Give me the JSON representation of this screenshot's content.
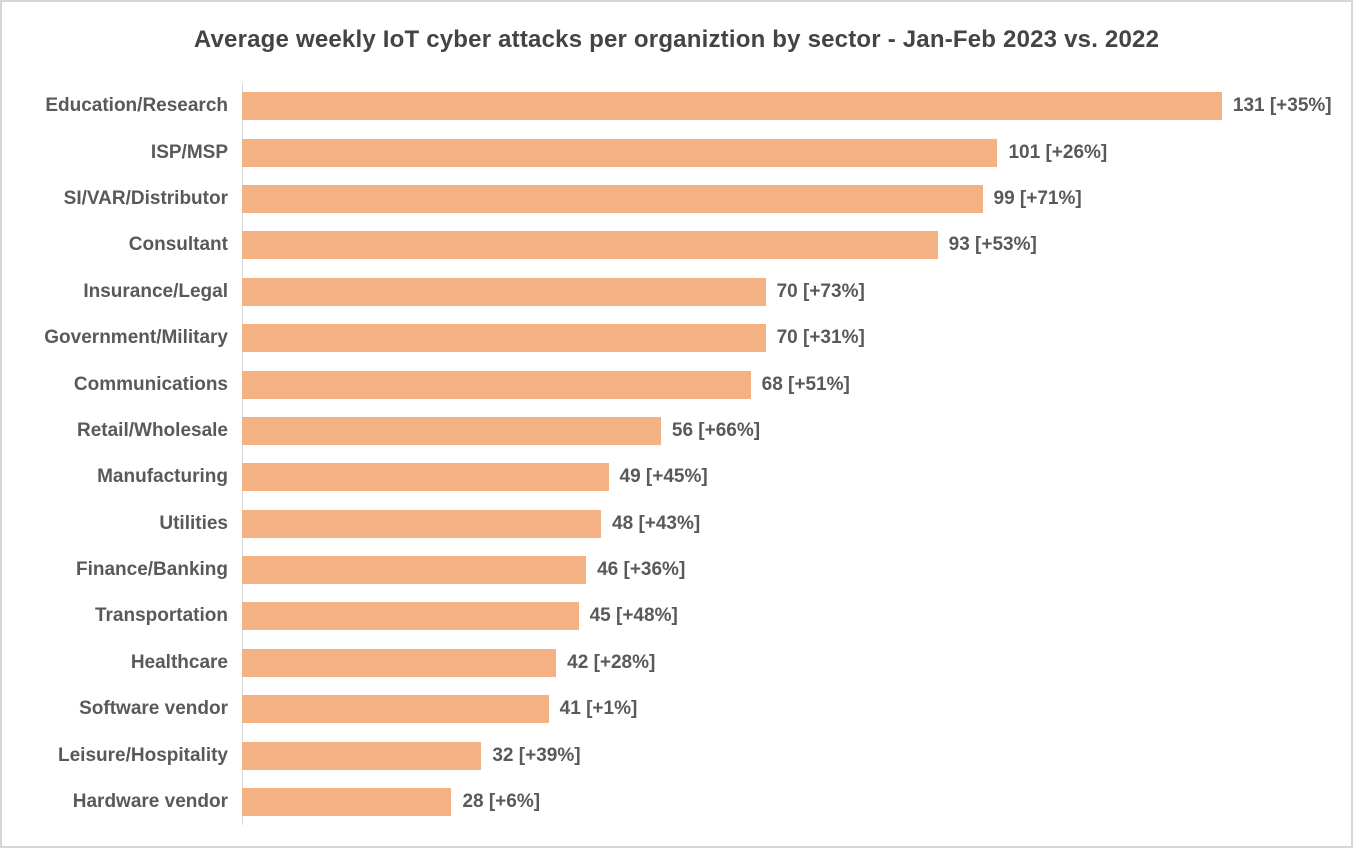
{
  "title": "Average weekly IoT cyber attacks per organiztion by sector - Jan-Feb 2023 vs. 2022",
  "chart_data": {
    "type": "bar",
    "orientation": "horizontal",
    "title": "Average weekly IoT cyber attacks per organiztion by sector - Jan-Feb 2023 vs. 2022",
    "xlabel": "",
    "ylabel": "",
    "xlim": [
      0,
      140
    ],
    "grid": false,
    "legend": "none",
    "bar_color": "#F4B183",
    "text_color": "#595959",
    "axis_line_color": "#D9D9D9",
    "value_label_format": "value [change%]",
    "categories": [
      "Education/Research",
      "ISP/MSP",
      "SI/VAR/Distributor",
      "Consultant",
      "Insurance/Legal",
      "Government/Military",
      "Communications",
      "Retail/Wholesale",
      "Manufacturing",
      "Utilities",
      "Finance/Banking",
      "Transportation",
      "Healthcare",
      "Software vendor",
      "Leisure/Hospitality",
      "Hardware vendor"
    ],
    "values": [
      131,
      101,
      99,
      93,
      70,
      70,
      68,
      56,
      49,
      48,
      46,
      45,
      42,
      41,
      32,
      28
    ],
    "changes": [
      "+35%",
      "+26%",
      "+71%",
      "+53%",
      "+73%",
      "+31%",
      "+51%",
      "+66%",
      "+45%",
      "+43%",
      "+36%",
      "+48%",
      "+28%",
      "+1%",
      "+39%",
      "+6%"
    ],
    "rows": [
      {
        "sector": "Education/Research",
        "value": 131,
        "change": "+35%",
        "label": "131 [+35%]"
      },
      {
        "sector": "ISP/MSP",
        "value": 101,
        "change": "+26%",
        "label": "101 [+26%]"
      },
      {
        "sector": "SI/VAR/Distributor",
        "value": 99,
        "change": "+71%",
        "label": "99 [+71%]"
      },
      {
        "sector": "Consultant",
        "value": 93,
        "change": "+53%",
        "label": "93 [+53%]"
      },
      {
        "sector": "Insurance/Legal",
        "value": 70,
        "change": "+73%",
        "label": "70 [+73%]"
      },
      {
        "sector": "Government/Military",
        "value": 70,
        "change": "+31%",
        "label": "70 [+31%]"
      },
      {
        "sector": "Communications",
        "value": 68,
        "change": "+51%",
        "label": "68 [+51%]"
      },
      {
        "sector": "Retail/Wholesale",
        "value": 56,
        "change": "+66%",
        "label": "56 [+66%]"
      },
      {
        "sector": "Manufacturing",
        "value": 49,
        "change": "+45%",
        "label": "49 [+45%]"
      },
      {
        "sector": "Utilities",
        "value": 48,
        "change": "+43%",
        "label": "48 [+43%]"
      },
      {
        "sector": "Finance/Banking",
        "value": 46,
        "change": "+36%",
        "label": "46 [+36%]"
      },
      {
        "sector": "Transportation",
        "value": 45,
        "change": "+48%",
        "label": "45 [+48%]"
      },
      {
        "sector": "Healthcare",
        "value": 42,
        "change": "+28%",
        "label": "42 [+28%]"
      },
      {
        "sector": "Software vendor",
        "value": 41,
        "change": "+1%",
        "label": "41 [+1%]"
      },
      {
        "sector": "Leisure/Hospitality",
        "value": 32,
        "change": "+39%",
        "label": "32 [+39%]"
      },
      {
        "sector": "Hardware vendor",
        "value": 28,
        "change": "+6%",
        "label": "28 [+6%]"
      }
    ]
  }
}
